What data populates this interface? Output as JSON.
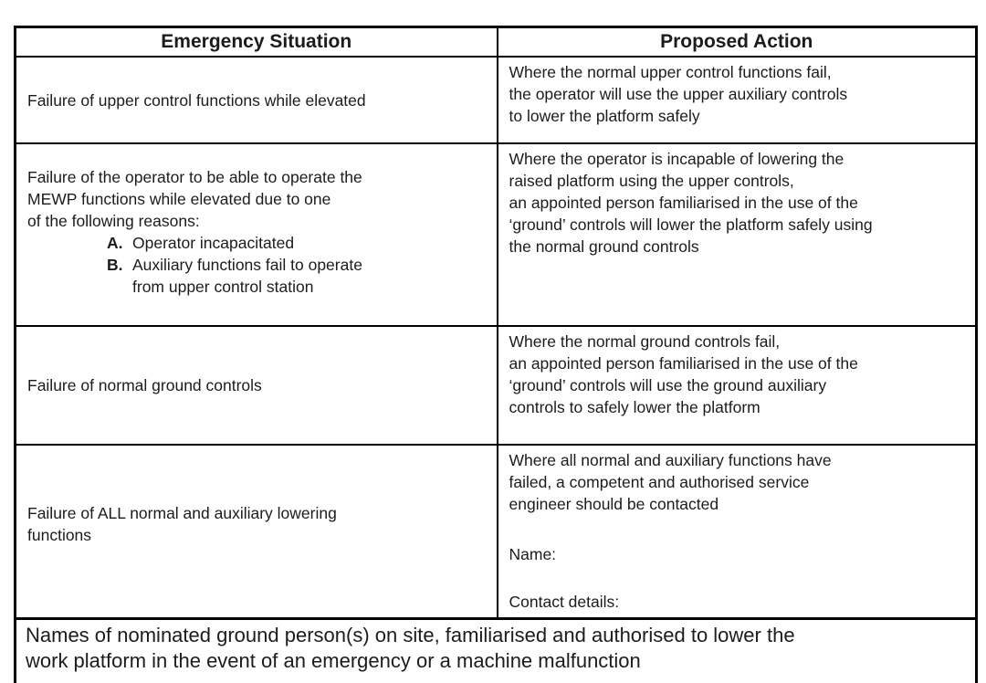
{
  "document": {
    "header": {
      "col1": "Emergency Situation",
      "col2": "Proposed Action"
    },
    "rows": [
      {
        "situation": "Failure of upper control functions while elevated",
        "action": "Where the normal upper control functions fail,\nthe operator will use the upper auxiliary controls\nto lower the platform safely"
      },
      {
        "situation_intro": "Failure of the operator to be able to operate the\nMEWP functions while elevated due to one\nof the following reasons:",
        "situation_list": [
          {
            "marker": "A.",
            "text": "Operator incapacitated"
          },
          {
            "marker": "B.",
            "text": "Auxiliary functions fail to operate\nfrom upper control station"
          }
        ],
        "action": "Where the operator is incapable of lowering the\nraised platform using the upper controls,\nan appointed person familiarised in the use of the\n‘ground’ controls will lower the platform safely using\nthe normal ground controls"
      },
      {
        "situation": "Failure of normal ground controls",
        "action": "Where the normal ground controls fail,\nan appointed person familiarised in the use of the\n‘ground’ controls will use the ground auxiliary\ncontrols to safely lower the platform"
      },
      {
        "situation": "Failure of ALL normal and auxiliary lowering\nfunctions",
        "action": "Where all normal and auxiliary functions have\nfailed, a competent and authorised service\nengineer should be contacted",
        "name_label": "Name:",
        "contact_label": "Contact details:"
      }
    ],
    "footer": "Names of nominated ground person(s) on site, familiarised and authorised to lower the\nwork platform in the event of an emergency or a machine malfunction"
  }
}
